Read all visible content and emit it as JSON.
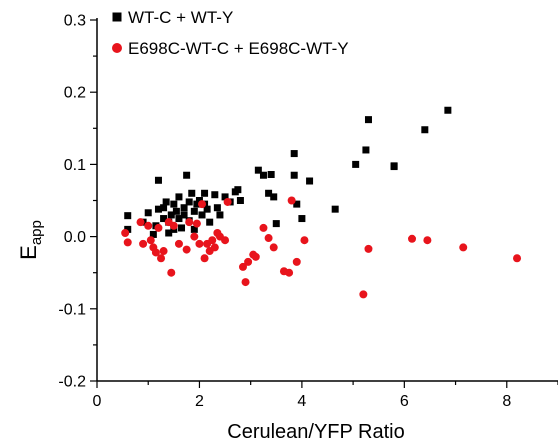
{
  "chart_data": {
    "type": "scatter",
    "title": "",
    "xlabel": "Cerulean/YFP Ratio",
    "ylabel_main": "E",
    "ylabel_sub": "app",
    "xlim": [
      0,
      9
    ],
    "ylim": [
      -0.2,
      0.3
    ],
    "x_ticks": [
      0,
      2,
      4,
      6,
      8
    ],
    "y_ticks": [
      -0.2,
      -0.1,
      0.0,
      0.1,
      0.2,
      0.3
    ],
    "y_tick_labels": [
      "-0.2",
      "-0.1",
      "0.0",
      "0.1",
      "0.2",
      "0.3"
    ],
    "grid": false,
    "legend_position": "top-left",
    "series": [
      {
        "name": "WT-C + WT-Y",
        "marker": "square",
        "color": "#000000",
        "points": [
          [
            0.6,
            0.029
          ],
          [
            0.6,
            0.01
          ],
          [
            0.9,
            0.02
          ],
          [
            1.0,
            0.033
          ],
          [
            1.1,
            0.003
          ],
          [
            1.15,
            0.015
          ],
          [
            1.2,
            0.038
          ],
          [
            1.2,
            0.078
          ],
          [
            1.3,
            0.04
          ],
          [
            1.3,
            0.025
          ],
          [
            1.35,
            0.048
          ],
          [
            1.4,
            0.02
          ],
          [
            1.4,
            0.005
          ],
          [
            1.45,
            0.03
          ],
          [
            1.5,
            0.045
          ],
          [
            1.5,
            0.01
          ],
          [
            1.55,
            0.035
          ],
          [
            1.6,
            0.055
          ],
          [
            1.6,
            0.025
          ],
          [
            1.65,
            0.012
          ],
          [
            1.7,
            0.04
          ],
          [
            1.7,
            0.03
          ],
          [
            1.75,
            0.085
          ],
          [
            1.8,
            0.048
          ],
          [
            1.8,
            0.022
          ],
          [
            1.85,
            0.06
          ],
          [
            1.9,
            0.035
          ],
          [
            1.9,
            0.01
          ],
          [
            1.95,
            0.045
          ],
          [
            2.0,
            0.05
          ],
          [
            2.05,
            0.03
          ],
          [
            2.1,
            0.06
          ],
          [
            2.1,
            0.045
          ],
          [
            2.15,
            0.038
          ],
          [
            2.2,
            0.02
          ],
          [
            2.3,
            0.058
          ],
          [
            2.35,
            0.04
          ],
          [
            2.4,
            0.03
          ],
          [
            2.5,
            0.055
          ],
          [
            2.6,
            0.048
          ],
          [
            2.7,
            0.062
          ],
          [
            2.75,
            0.065
          ],
          [
            2.8,
            0.05
          ],
          [
            3.15,
            0.092
          ],
          [
            3.25,
            0.085
          ],
          [
            3.4,
            0.086
          ],
          [
            3.35,
            0.06
          ],
          [
            3.45,
            0.055
          ],
          [
            3.5,
            0.018
          ],
          [
            3.85,
            0.115
          ],
          [
            3.85,
            0.085
          ],
          [
            3.9,
            0.045
          ],
          [
            4.0,
            0.025
          ],
          [
            4.15,
            0.077
          ],
          [
            4.65,
            0.038
          ],
          [
            5.05,
            0.1
          ],
          [
            5.25,
            0.12
          ],
          [
            5.3,
            0.162
          ],
          [
            5.8,
            0.098
          ],
          [
            5.8,
            0.097
          ],
          [
            6.4,
            0.148
          ],
          [
            6.85,
            0.175
          ]
        ]
      },
      {
        "name": "E698C-WT-C + E698C-WT-Y",
        "marker": "circle",
        "color": "#e8141c",
        "points": [
          [
            0.55,
            0.005
          ],
          [
            0.6,
            -0.008
          ],
          [
            0.85,
            0.02
          ],
          [
            0.9,
            -0.01
          ],
          [
            1.0,
            0.015
          ],
          [
            1.05,
            -0.005
          ],
          [
            1.1,
            -0.015
          ],
          [
            1.15,
            -0.022
          ],
          [
            1.2,
            0.012
          ],
          [
            1.25,
            -0.03
          ],
          [
            1.3,
            -0.02
          ],
          [
            1.4,
            0.02
          ],
          [
            1.45,
            -0.05
          ],
          [
            1.5,
            0.015
          ],
          [
            1.6,
            -0.01
          ],
          [
            1.75,
            -0.018
          ],
          [
            1.8,
            0.02
          ],
          [
            1.9,
            0.0
          ],
          [
            1.95,
            0.018
          ],
          [
            2.0,
            -0.01
          ],
          [
            2.05,
            0.045
          ],
          [
            2.1,
            -0.03
          ],
          [
            2.15,
            -0.01
          ],
          [
            2.2,
            -0.02
          ],
          [
            2.25,
            -0.005
          ],
          [
            2.3,
            -0.015
          ],
          [
            2.35,
            0.005
          ],
          [
            2.4,
            0.0
          ],
          [
            2.5,
            -0.005
          ],
          [
            2.55,
            0.048
          ],
          [
            2.85,
            -0.042
          ],
          [
            2.9,
            -0.063
          ],
          [
            2.95,
            -0.035
          ],
          [
            3.05,
            -0.025
          ],
          [
            3.1,
            -0.028
          ],
          [
            3.25,
            0.012
          ],
          [
            3.35,
            -0.002
          ],
          [
            3.45,
            -0.015
          ],
          [
            3.65,
            -0.048
          ],
          [
            3.75,
            -0.05
          ],
          [
            3.8,
            0.05
          ],
          [
            3.9,
            -0.035
          ],
          [
            4.05,
            -0.005
          ],
          [
            5.2,
            -0.08
          ],
          [
            5.3,
            -0.017
          ],
          [
            6.15,
            -0.003
          ],
          [
            6.45,
            -0.005
          ],
          [
            7.15,
            -0.015
          ],
          [
            8.2,
            -0.03
          ]
        ]
      }
    ]
  }
}
